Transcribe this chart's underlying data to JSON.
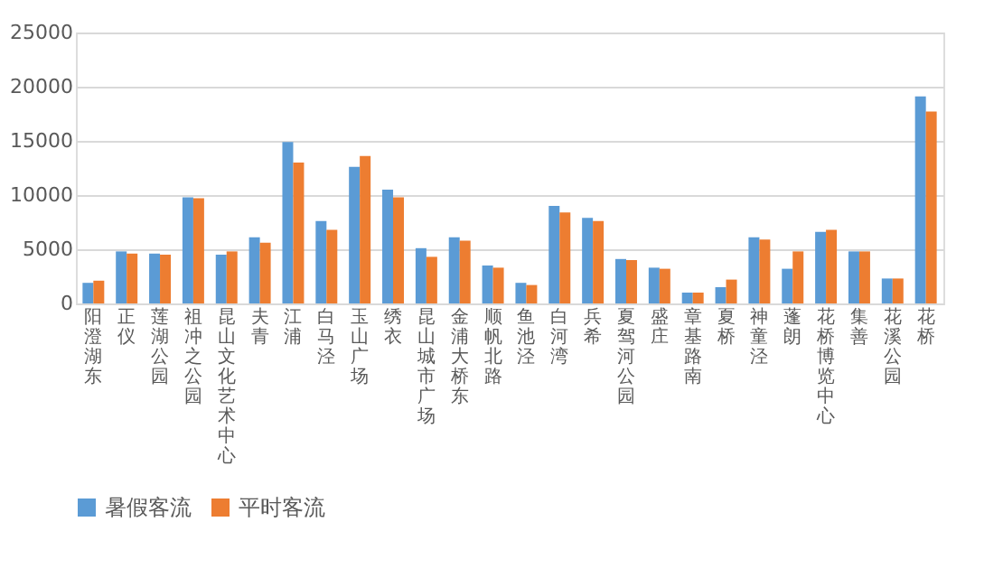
{
  "chart_data": {
    "type": "bar",
    "categories": [
      "阳澄湖东",
      "正仪",
      "莲湖公园",
      "祖冲之公园",
      "昆山文化艺术中心",
      "夫青",
      "江浦",
      "白马泾",
      "玉山广场",
      "绣衣",
      "昆山城市广场",
      "金浦大桥东",
      "顺帆北路",
      "鱼池泾",
      "白河湾",
      "兵希",
      "夏驾河公园",
      "盛庄",
      "章基路南",
      "夏桥",
      "神童泾",
      "蓬朗",
      "花桥博览中心",
      "集善",
      "花溪公园",
      "花桥"
    ],
    "series": [
      {
        "name": "暑假客流",
        "color": "#5b9bd5",
        "values": [
          1900,
          4800,
          4600,
          9800,
          4500,
          6100,
          14900,
          7600,
          12600,
          10500,
          5100,
          6100,
          3500,
          1900,
          9000,
          7900,
          4100,
          3300,
          1000,
          1500,
          6100,
          3200,
          6600,
          4800,
          2300,
          19100
        ]
      },
      {
        "name": "平时客流",
        "color": "#ed7d31",
        "values": [
          2100,
          4600,
          4500,
          9700,
          4800,
          5600,
          13000,
          6800,
          13600,
          9800,
          4300,
          5800,
          3300,
          1700,
          8400,
          7600,
          4000,
          3200,
          1000,
          2200,
          5900,
          4800,
          6800,
          4800,
          2300,
          17700
        ]
      }
    ],
    "ylim": [
      0,
      25000
    ],
    "yticks": [
      0,
      5000,
      10000,
      15000,
      20000,
      25000
    ],
    "grid": "y",
    "legend": "bottom"
  }
}
